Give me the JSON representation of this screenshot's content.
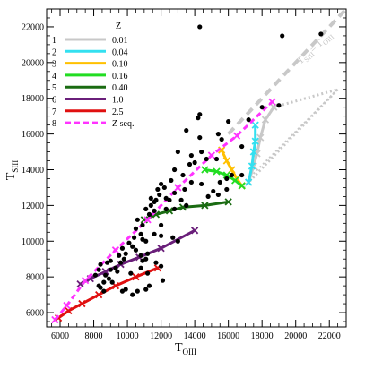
{
  "chart_data": {
    "type": "scatter",
    "xlabel": "T",
    "xlabel_sub": "OIII",
    "ylabel": "T",
    "ylabel_sub": "SIII",
    "xlim": [
      5200,
      23000
    ],
    "ylim": [
      5200,
      23000
    ],
    "x_ticks": [
      6000,
      8000,
      10000,
      12000,
      14000,
      16000,
      18000,
      20000,
      22000
    ],
    "y_ticks": [
      6000,
      8000,
      10000,
      12000,
      14000,
      16000,
      18000,
      20000,
      22000
    ],
    "legend_title": "Z",
    "identity_line_label": "T_SIII = T_OIII",
    "identity_label_main": "T",
    "identity_label_sub1": "SIII",
    "identity_label_eq": "= T",
    "identity_label_sub2": "OIII",
    "series": [
      {
        "num": "1",
        "name": "0.01",
        "color": "#c8c8c8",
        "points": [
          [
            17200,
            13300
          ],
          [
            17500,
            14200
          ],
          [
            17700,
            14900
          ],
          [
            17900,
            15800
          ],
          [
            18200,
            16800
          ],
          [
            18700,
            17500
          ]
        ]
      },
      {
        "num": "2",
        "name": "0.04",
        "color": "#33e0f0",
        "points": [
          [
            17200,
            13300
          ],
          [
            17400,
            14200
          ],
          [
            17500,
            15000
          ],
          [
            17600,
            15600
          ],
          [
            17600,
            16500
          ]
        ]
      },
      {
        "num": "3",
        "name": "0.10",
        "color": "#ffc000",
        "points": [
          [
            16800,
            13100
          ],
          [
            16500,
            13500
          ],
          [
            16200,
            14000
          ],
          [
            15900,
            14500
          ],
          [
            15600,
            15100
          ]
        ]
      },
      {
        "num": "4",
        "name": "0.16",
        "color": "#22dd22",
        "points": [
          [
            16800,
            13100
          ],
          [
            16400,
            13400
          ],
          [
            15900,
            13700
          ],
          [
            15300,
            13900
          ],
          [
            14600,
            14000
          ]
        ]
      },
      {
        "num": "5",
        "name": "0.40",
        "color": "#1a6b12",
        "points": [
          [
            11000,
            11200
          ],
          [
            11700,
            11500
          ],
          [
            12500,
            11700
          ],
          [
            13300,
            11900
          ],
          [
            14600,
            12000
          ],
          [
            16000,
            12200
          ]
        ]
      },
      {
        "num": "6",
        "name": "1.0",
        "color": "#6a1f7a",
        "points": [
          [
            7200,
            7600
          ],
          [
            7800,
            7900
          ],
          [
            8700,
            8300
          ],
          [
            9600,
            8700
          ],
          [
            10700,
            9100
          ],
          [
            12000,
            9600
          ],
          [
            14000,
            10600
          ]
        ]
      },
      {
        "num": "7",
        "name": "2.5",
        "color": "#e01010",
        "points": [
          [
            5900,
            5700
          ],
          [
            6500,
            6100
          ],
          [
            7300,
            6500
          ],
          [
            8300,
            7000
          ],
          [
            9300,
            7500
          ],
          [
            10500,
            8000
          ],
          [
            11800,
            8500
          ]
        ]
      },
      {
        "num": "8",
        "name": "Z seq.",
        "color": "#ff33ff",
        "dashed": true,
        "points": [
          [
            5700,
            5600
          ],
          [
            6400,
            6400
          ],
          [
            7500,
            7800
          ],
          [
            9300,
            9500
          ],
          [
            11200,
            11200
          ],
          [
            13000,
            13000
          ],
          [
            15000,
            14800
          ],
          [
            16500,
            15900
          ],
          [
            18600,
            17800
          ]
        ]
      }
    ],
    "gray_fan_points": [
      [
        16900,
        13000
      ],
      [
        22500,
        18500
      ]
    ],
    "scatter_points": [
      [
        21500,
        21600
      ],
      [
        14300,
        22000
      ],
      [
        19200,
        21500
      ],
      [
        19000,
        17600
      ],
      [
        18000,
        17500
      ],
      [
        17200,
        16800
      ],
      [
        16800,
        15300
      ],
      [
        14300,
        17100
      ],
      [
        14200,
        16900
      ],
      [
        16000,
        16700
      ],
      [
        15400,
        16000
      ],
      [
        15600,
        15700
      ],
      [
        15300,
        14600
      ],
      [
        14400,
        15000
      ],
      [
        14700,
        14600
      ],
      [
        14300,
        15800
      ],
      [
        13500,
        16200
      ],
      [
        13800,
        14800
      ],
      [
        14000,
        14400
      ],
      [
        13700,
        14300
      ],
      [
        13300,
        13700
      ],
      [
        13000,
        15000
      ],
      [
        12800,
        14000
      ],
      [
        12600,
        13400
      ],
      [
        12800,
        12700
      ],
      [
        13400,
        12900
      ],
      [
        12200,
        13000
      ],
      [
        12000,
        13200
      ],
      [
        11800,
        12900
      ],
      [
        11900,
        12600
      ],
      [
        12300,
        12400
      ],
      [
        12500,
        12300
      ],
      [
        11700,
        12300
      ],
      [
        11600,
        12200
      ],
      [
        11400,
        12400
      ],
      [
        11100,
        11800
      ],
      [
        11400,
        12000
      ],
      [
        12300,
        11800
      ],
      [
        11600,
        11700
      ],
      [
        11300,
        11500
      ],
      [
        10900,
        10900
      ],
      [
        10600,
        11200
      ],
      [
        10500,
        10700
      ],
      [
        10800,
        10400
      ],
      [
        10900,
        10100
      ],
      [
        10400,
        10200
      ],
      [
        10100,
        9900
      ],
      [
        11100,
        10000
      ],
      [
        10500,
        9500
      ],
      [
        10300,
        9700
      ],
      [
        9700,
        9600
      ],
      [
        9900,
        9300
      ],
      [
        9500,
        9200
      ],
      [
        9800,
        9000
      ],
      [
        9600,
        8800
      ],
      [
        9000,
        8900
      ],
      [
        9300,
        8500
      ],
      [
        9400,
        8300
      ],
      [
        8800,
        8800
      ],
      [
        9000,
        8400
      ],
      [
        8400,
        8700
      ],
      [
        8700,
        8100
      ],
      [
        8300,
        8400
      ],
      [
        8600,
        7700
      ],
      [
        8100,
        8100
      ],
      [
        8300,
        7500
      ],
      [
        8400,
        7400
      ],
      [
        8600,
        7200
      ],
      [
        8900,
        7900
      ],
      [
        9100,
        7700
      ],
      [
        9700,
        7200
      ],
      [
        9900,
        7300
      ],
      [
        10300,
        7000
      ],
      [
        10600,
        7200
      ],
      [
        11100,
        7300
      ],
      [
        11200,
        8200
      ],
      [
        11300,
        7500
      ],
      [
        12100,
        7800
      ],
      [
        10800,
        8500
      ],
      [
        10200,
        8200
      ],
      [
        10900,
        8900
      ],
      [
        11100,
        9000
      ],
      [
        11700,
        8800
      ],
      [
        12000,
        8600
      ],
      [
        11200,
        9300
      ],
      [
        10800,
        9200
      ],
      [
        13000,
        10000
      ],
      [
        12700,
        10200
      ],
      [
        12000,
        10300
      ],
      [
        15100,
        12800
      ],
      [
        15400,
        12600
      ],
      [
        15500,
        13300
      ],
      [
        14400,
        13200
      ],
      [
        13800,
        13300
      ],
      [
        12800,
        11800
      ],
      [
        13200,
        12300
      ],
      [
        14800,
        12500
      ],
      [
        15900,
        12900
      ],
      [
        12000,
        10900
      ],
      [
        13500,
        12000
      ],
      [
        11600,
        10400
      ],
      [
        16200,
        13700
      ],
      [
        16800,
        13700
      ],
      [
        15900,
        13500
      ]
    ]
  }
}
